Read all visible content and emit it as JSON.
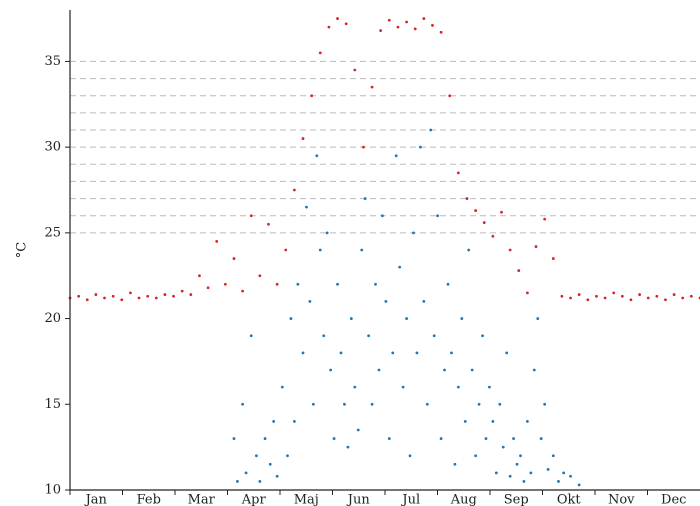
{
  "chart_data": {
    "type": "scatter",
    "y_label": "°C",
    "categories": [
      "Jan",
      "Feb",
      "Mar",
      "Apr",
      "Maj",
      "Jun",
      "Jul",
      "Aug",
      "Sep",
      "Okt",
      "Nov",
      "Dec"
    ],
    "xlim": [
      0,
      365
    ],
    "ylim": [
      10,
      38
    ],
    "yticks": [
      10,
      15,
      20,
      25,
      30,
      35
    ],
    "hlines": [
      25,
      26,
      27,
      28,
      29,
      30,
      31,
      32,
      33,
      34,
      35
    ],
    "series": [
      {
        "color": "#d62728",
        "x": [
          0,
          5,
          10,
          15,
          20,
          25,
          30,
          35,
          40,
          45,
          50,
          55,
          60,
          65,
          70,
          75,
          80,
          85,
          90,
          95,
          100,
          105,
          110,
          115,
          120,
          125,
          130,
          135,
          140,
          145,
          150,
          155,
          160,
          165,
          170,
          175,
          180,
          185,
          190,
          195,
          200,
          205,
          210,
          215,
          220,
          225,
          230,
          235,
          240,
          245,
          250,
          255,
          260,
          265,
          270,
          275,
          280,
          285,
          290,
          295,
          300,
          305,
          310,
          315,
          320,
          325,
          330,
          335,
          340,
          345,
          350,
          355,
          360,
          365
        ],
        "values": [
          21.2,
          21.3,
          21.1,
          21.4,
          21.2,
          21.3,
          21.1,
          21.5,
          21.2,
          21.3,
          21.2,
          21.4,
          21.3,
          21.6,
          21.4,
          22.5,
          21.8,
          24.5,
          22.0,
          23.5,
          21.6,
          26.0,
          22.5,
          25.5,
          22.0,
          24.0,
          27.5,
          30.5,
          33.0,
          35.5,
          37.0,
          37.5,
          37.2,
          34.5,
          30.0,
          33.5,
          36.8,
          37.4,
          37.0,
          37.3,
          36.9,
          37.5,
          37.1,
          36.7,
          33.0,
          28.5,
          27.0,
          26.3,
          25.6,
          24.8,
          26.2,
          24.0,
          22.8,
          21.5,
          24.2,
          25.8,
          23.5,
          21.3,
          21.2,
          21.4,
          21.1,
          21.3,
          21.2,
          21.5,
          21.3,
          21.1,
          21.4,
          21.2,
          21.3,
          21.1,
          21.4,
          21.2,
          21.3,
          21.2
        ]
      },
      {
        "color": "#1f77b4",
        "x": [
          95,
          97,
          100,
          102,
          105,
          108,
          110,
          113,
          116,
          118,
          120,
          123,
          126,
          128,
          130,
          132,
          135,
          137,
          139,
          141,
          143,
          145,
          147,
          149,
          151,
          153,
          155,
          157,
          159,
          161,
          163,
          165,
          167,
          169,
          171,
          173,
          175,
          177,
          179,
          181,
          183,
          185,
          187,
          189,
          191,
          193,
          195,
          197,
          199,
          201,
          203,
          205,
          207,
          209,
          211,
          213,
          215,
          217,
          219,
          221,
          223,
          225,
          227,
          229,
          231,
          233,
          235,
          237,
          239,
          241,
          243,
          245,
          247,
          249,
          251,
          253,
          255,
          257,
          259,
          261,
          263,
          265,
          267,
          269,
          271,
          273,
          275,
          277,
          280,
          283,
          286,
          290,
          295
        ],
        "values": [
          13,
          10.5,
          15,
          11,
          19,
          12,
          10.5,
          13,
          11.5,
          14,
          10.8,
          16,
          12,
          20,
          14,
          22,
          18,
          26.5,
          21,
          15,
          29.5,
          24,
          19,
          25,
          17,
          13,
          22,
          18,
          15,
          12.5,
          20,
          16,
          13.5,
          24,
          27,
          19,
          15,
          22,
          17,
          26,
          21,
          13,
          18,
          29.5,
          23,
          16,
          20,
          12,
          25,
          18,
          30,
          21,
          15,
          31,
          19,
          26,
          13,
          17,
          22,
          18,
          11.5,
          16,
          20,
          14,
          24,
          17,
          12,
          15,
          19,
          13,
          16,
          14,
          11,
          15,
          12.5,
          18,
          10.8,
          13,
          11.5,
          12,
          10.5,
          14,
          11,
          17,
          20,
          13,
          15,
          11.2,
          12,
          10.5,
          11,
          10.8,
          10.3
        ]
      }
    ]
  }
}
